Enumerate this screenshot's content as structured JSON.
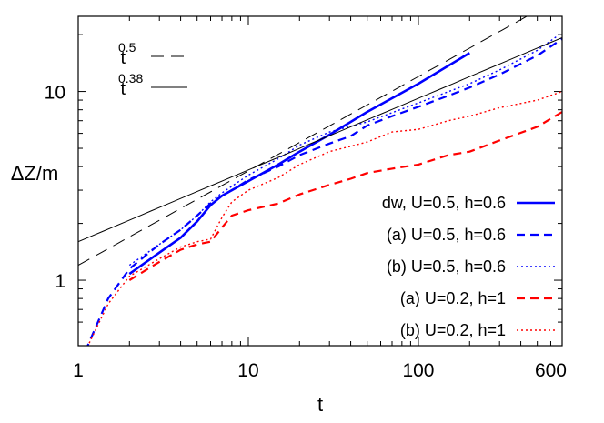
{
  "chart_data": {
    "type": "line",
    "xlabel": "t",
    "ylabel": "ΔZ/m",
    "x_scale": "log",
    "y_scale": "log",
    "xlim": [
      1,
      700
    ],
    "ylim": [
      0.45,
      25
    ],
    "x_ticks": [
      {
        "value": 1,
        "label": "1"
      },
      {
        "value": 10,
        "label": "10"
      },
      {
        "value": 100,
        "label": "100"
      },
      {
        "value": 600,
        "label": "600"
      }
    ],
    "y_ticks": [
      {
        "value": 1,
        "label": "1"
      },
      {
        "value": 10,
        "label": "10"
      }
    ],
    "reference_lines": [
      {
        "base": "t",
        "exponent": "0.5",
        "slope": 0.5,
        "coef": 1.2,
        "style": "long-dash",
        "color": "#000000"
      },
      {
        "base": "t",
        "exponent": "0.38",
        "slope": 0.38,
        "coef": 1.6,
        "style": "solid-thin",
        "color": "#000000"
      }
    ],
    "series": [
      {
        "name": "dw, U=0.5, h=0.6",
        "color": "#0000ff",
        "style": "solid",
        "x": [
          2,
          3,
          4,
          5,
          6,
          7,
          8,
          10,
          15,
          20,
          30,
          50,
          100,
          200
        ],
        "y": [
          1.08,
          1.4,
          1.68,
          2.05,
          2.5,
          2.8,
          3.0,
          3.35,
          4.1,
          4.8,
          5.9,
          7.8,
          11.0,
          16.0
        ]
      },
      {
        "name": "(a) U=0.5, h=0.6",
        "color": "#0000ff",
        "style": "dash",
        "x": [
          1.1,
          1.5,
          2,
          3,
          4,
          5,
          6,
          7,
          8,
          10,
          15,
          20,
          30,
          40,
          50,
          70,
          100,
          150,
          200,
          300,
          500,
          700
        ],
        "y": [
          0.42,
          0.8,
          1.15,
          1.55,
          1.85,
          2.2,
          2.55,
          2.8,
          3.0,
          3.4,
          4.0,
          4.6,
          5.3,
          5.8,
          6.6,
          7.4,
          8.3,
          9.5,
          10.5,
          12.3,
          15.5,
          19.0
        ]
      },
      {
        "name": "(b) U=0.5, h=0.6",
        "color": "#0000ff",
        "style": "dot",
        "x": [
          2,
          3,
          4,
          5,
          6,
          7,
          8,
          10,
          15,
          20,
          30,
          50,
          100,
          200,
          300,
          500,
          700
        ],
        "y": [
          1.2,
          1.55,
          1.85,
          2.2,
          2.6,
          2.9,
          3.15,
          3.6,
          4.4,
          5.2,
          6.1,
          6.9,
          8.7,
          11.0,
          13.0,
          16.5,
          20.5
        ]
      },
      {
        "name": "(a) U=0.2, h=1",
        "color": "#ff0000",
        "style": "dash",
        "x": [
          2,
          3,
          4,
          5,
          6,
          7,
          8,
          10,
          15,
          20,
          30,
          40,
          50,
          70,
          100,
          150,
          200,
          300,
          500,
          700
        ],
        "y": [
          1.0,
          1.25,
          1.45,
          1.55,
          1.6,
          1.9,
          2.2,
          2.35,
          2.55,
          2.85,
          3.2,
          3.45,
          3.7,
          3.9,
          4.1,
          4.6,
          4.8,
          5.5,
          6.5,
          7.8
        ]
      },
      {
        "name": "(b) U=0.2, h=1",
        "color": "#ff0000",
        "style": "dot",
        "x": [
          1.1,
          1.5,
          2,
          3,
          4,
          5,
          6,
          7,
          8,
          10,
          15,
          20,
          30,
          50,
          70,
          100,
          150,
          200,
          300,
          500,
          700
        ],
        "y": [
          0.42,
          0.75,
          1.05,
          1.3,
          1.5,
          1.6,
          1.65,
          2.15,
          2.6,
          3.0,
          3.5,
          4.1,
          4.8,
          5.4,
          6.1,
          6.3,
          7.0,
          7.4,
          8.2,
          9.0,
          10.0
        ]
      }
    ]
  }
}
